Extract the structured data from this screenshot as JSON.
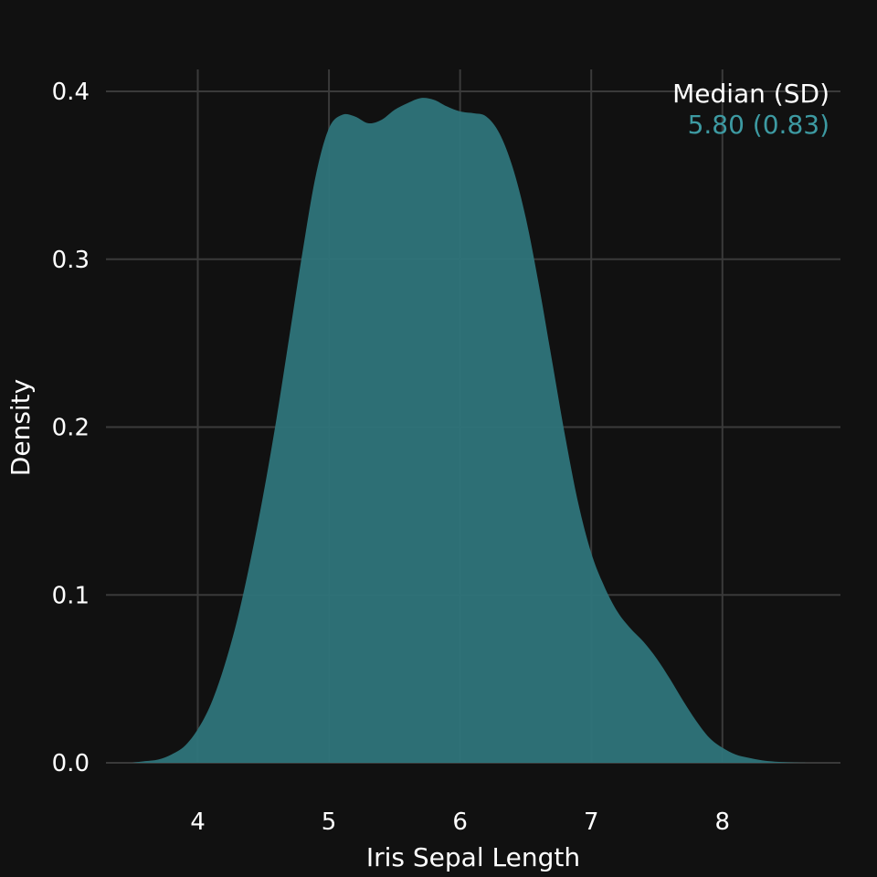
{
  "chart_data": {
    "type": "area",
    "title": "",
    "xlabel": "Iris Sepal Length",
    "ylabel": "Density",
    "xlim": [
      3.3,
      8.9
    ],
    "ylim": [
      0,
      0.4
    ],
    "grid": true,
    "x_ticks": [
      4,
      5,
      6,
      7,
      8
    ],
    "y_ticks": [
      0.0,
      0.1,
      0.2,
      0.3,
      0.4
    ],
    "x_tick_labels": [
      "4",
      "5",
      "6",
      "7",
      "8"
    ],
    "y_tick_labels": [
      "0.0",
      "0.1",
      "0.2",
      "0.3",
      "0.4"
    ],
    "series": [
      {
        "color": "#2e7379",
        "x": [
          3.5,
          3.6,
          3.7,
          3.8,
          3.9,
          4.0,
          4.1,
          4.2,
          4.3,
          4.4,
          4.5,
          4.6,
          4.7,
          4.8,
          4.9,
          5.0,
          5.1,
          5.2,
          5.3,
          5.4,
          5.5,
          5.6,
          5.7,
          5.8,
          5.9,
          6.0,
          6.1,
          6.2,
          6.3,
          6.4,
          6.5,
          6.6,
          6.7,
          6.8,
          6.9,
          7.0,
          7.1,
          7.2,
          7.3,
          7.4,
          7.5,
          7.6,
          7.7,
          7.8,
          7.9,
          8.0,
          8.1,
          8.2,
          8.3,
          8.4,
          8.5,
          8.6,
          8.7
        ],
        "y": [
          0.0,
          0.001,
          0.002,
          0.005,
          0.01,
          0.02,
          0.035,
          0.057,
          0.085,
          0.12,
          0.16,
          0.205,
          0.255,
          0.305,
          0.35,
          0.378,
          0.386,
          0.385,
          0.381,
          0.383,
          0.389,
          0.393,
          0.396,
          0.395,
          0.391,
          0.388,
          0.387,
          0.385,
          0.375,
          0.355,
          0.325,
          0.285,
          0.24,
          0.195,
          0.155,
          0.125,
          0.105,
          0.09,
          0.08,
          0.072,
          0.062,
          0.05,
          0.037,
          0.025,
          0.015,
          0.009,
          0.005,
          0.003,
          0.0015,
          0.0007,
          0.0003,
          0.0001,
          0.0
        ]
      }
    ],
    "annotation": {
      "header": "Median (SD)",
      "value": "5.80 (0.83)",
      "header_color": "#ffffff",
      "value_color": "#3d9aa2"
    }
  }
}
